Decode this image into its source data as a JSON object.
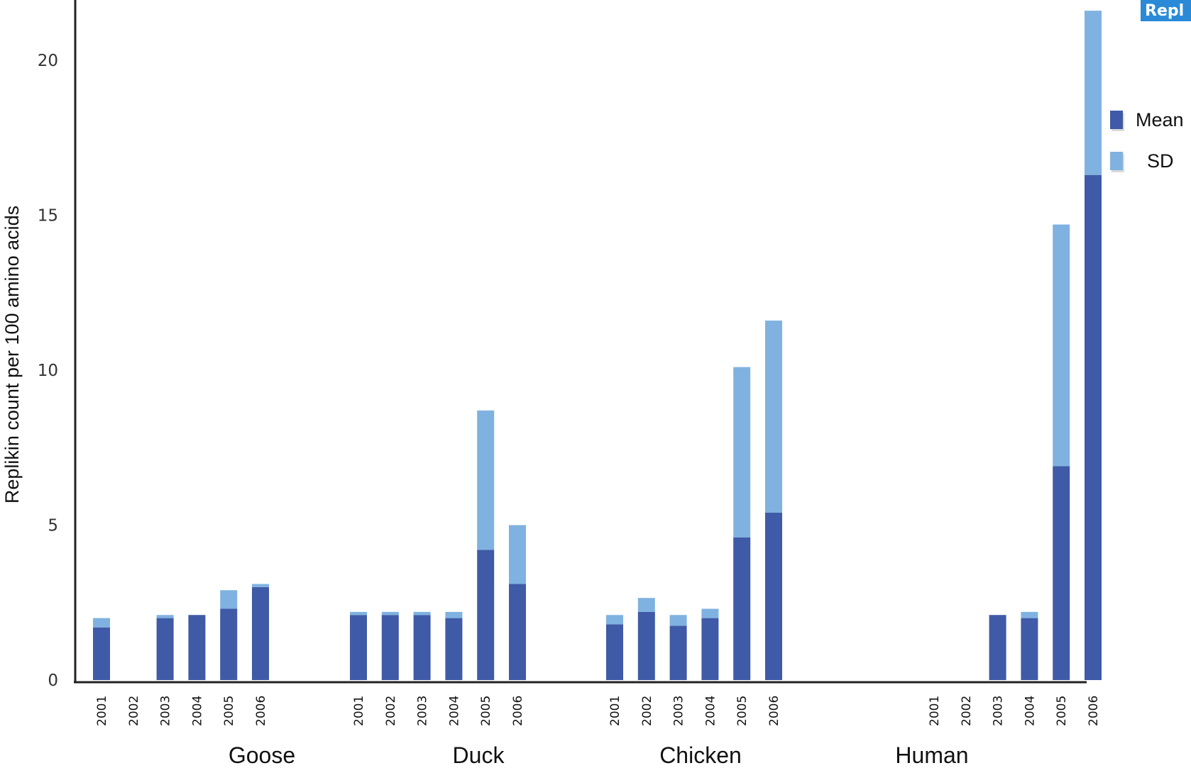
{
  "chart_data": {
    "type": "bar",
    "stacked": true,
    "ylabel": "Replikin count per 100 amino acids",
    "ylim": [
      0,
      22
    ],
    "yticks": [
      0,
      5,
      10,
      15,
      20
    ],
    "groups": [
      {
        "name": "Goose",
        "years": [
          "2001",
          "2002",
          "2003",
          "2004",
          "2005",
          "2006"
        ],
        "mean": [
          1.7,
          0,
          2.0,
          2.1,
          2.3,
          3.0
        ],
        "sd": [
          0.3,
          0,
          0.1,
          0.0,
          0.6,
          0.1
        ]
      },
      {
        "name": "Duck",
        "years": [
          "2001",
          "2002",
          "2003",
          "2004",
          "2005",
          "2006"
        ],
        "mean": [
          2.1,
          2.1,
          2.1,
          2.0,
          4.2,
          3.1
        ],
        "sd": [
          0.1,
          0.1,
          0.1,
          0.2,
          4.5,
          1.9
        ]
      },
      {
        "name": "Chicken",
        "years": [
          "2001",
          "2002",
          "2003",
          "2004",
          "2005",
          "2006"
        ],
        "mean": [
          1.8,
          2.2,
          1.75,
          2.0,
          4.6,
          5.4
        ],
        "sd": [
          0.3,
          0.45,
          0.35,
          0.3,
          5.5,
          6.2
        ]
      },
      {
        "name": "Human",
        "years": [
          "2001",
          "2002",
          "2003",
          "2004",
          "2005",
          "2006"
        ],
        "mean": [
          0,
          0,
          2.1,
          2.0,
          6.9,
          16.3
        ],
        "sd": [
          0,
          0,
          0.0,
          0.2,
          7.8,
          5.3
        ]
      }
    ],
    "legend": {
      "position": "right",
      "items": [
        {
          "label": "Mean",
          "color": "#3f5aa6"
        },
        {
          "label": "SD",
          "color": "#7fb2e0"
        }
      ]
    },
    "colors": {
      "mean": "#3f5aa6",
      "sd": "#7fb2e0"
    },
    "corner_badge": "Repl"
  }
}
